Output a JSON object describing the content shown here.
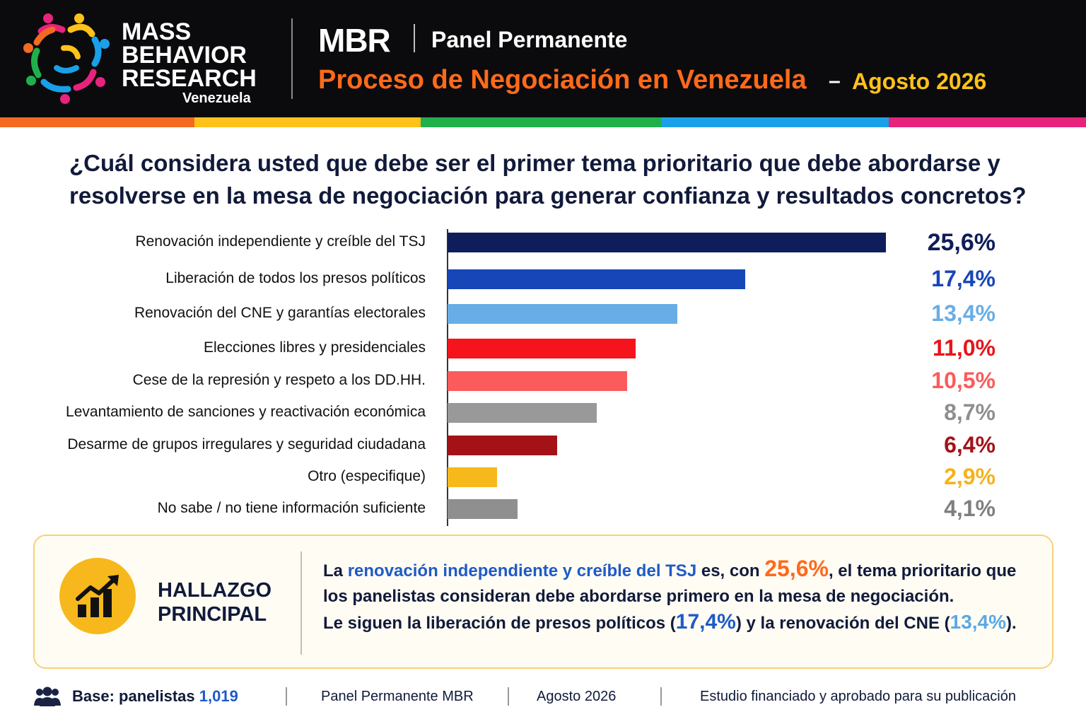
{
  "header": {
    "brand_lines": [
      "MASS",
      "BEHAVIOR",
      "RESEARCH"
    ],
    "brand_country": "Venezuela",
    "mbr": "MBR",
    "panel": "Panel Permanente",
    "process": "Proceso de Negociación en Venezuela",
    "dash": "–",
    "date": "Agosto 2026"
  },
  "stripe_colors": [
    "#f36a21",
    "#ffc21a",
    "#1fb04c",
    "#1aa0e8",
    "#e8237c"
  ],
  "question": "¿Cuál considera usted que debe ser el primer tema prioritario que debe abordarse y resolverse en la mesa de negociación para generar confianza y resultados concretos?",
  "chart_data": {
    "type": "bar",
    "orientation": "horizontal",
    "categories": [
      "Renovación independiente y creíble del TSJ",
      "Liberación de todos los presos políticos",
      "Renovación del CNE y garantías electorales",
      "Elecciones libres y presidenciales",
      "Cese de la represión y respeto a los DD.HH.",
      "Levantamiento de sanciones y reactivación económica",
      "Desarme de grupos irregulares y seguridad ciudadana",
      "Otro (especifique)",
      "No sabe / no tiene información suficiente"
    ],
    "values": [
      25.6,
      17.4,
      13.4,
      11.0,
      10.5,
      8.7,
      6.4,
      2.9,
      4.1
    ],
    "value_labels": [
      "25,6%",
      "17,4%",
      "13,4%",
      "11,0%",
      "10,5%",
      "8,7%",
      "6,4%",
      "2,9%",
      "4,1%"
    ],
    "colors": [
      "#0f1d5a",
      "#1746b8",
      "#69ade6",
      "#f5141b",
      "#fb5b5b",
      "#999999",
      "#a41218",
      "#f7b81c",
      "#8f8f8f"
    ],
    "label_colors": [
      "#0f1d5a",
      "#1746b8",
      "#69ade6",
      "#e8141b",
      "#fb5b5b",
      "#8f8f8f",
      "#a41218",
      "#f5b21c",
      "#7f7f7f"
    ],
    "xlim": [
      0,
      25.6
    ],
    "grid": false
  },
  "finding": {
    "heading_1": "HALLAZGO",
    "heading_2": "PRINCIPAL",
    "t1": "La ",
    "t2": "renovación independiente y creíble del TSJ",
    "t3": " es, con ",
    "t4": "25,6%",
    "t5": ", el tema prioritario que los panelistas consideran debe abordarse primero en la mesa de negociación.",
    "t6": "Le siguen la liberación de presos políticos (",
    "t7": "17,4%",
    "t8": ") y la renovación del CNE (",
    "t9": "13,4%",
    "t10": ")."
  },
  "footer": {
    "base_label": "Base: panelistas ",
    "base_value": "1,019",
    "panel": "Panel Permanente MBR",
    "date": "Agosto 2026",
    "note": "Estudio financiado y aprobado para su publicación"
  }
}
